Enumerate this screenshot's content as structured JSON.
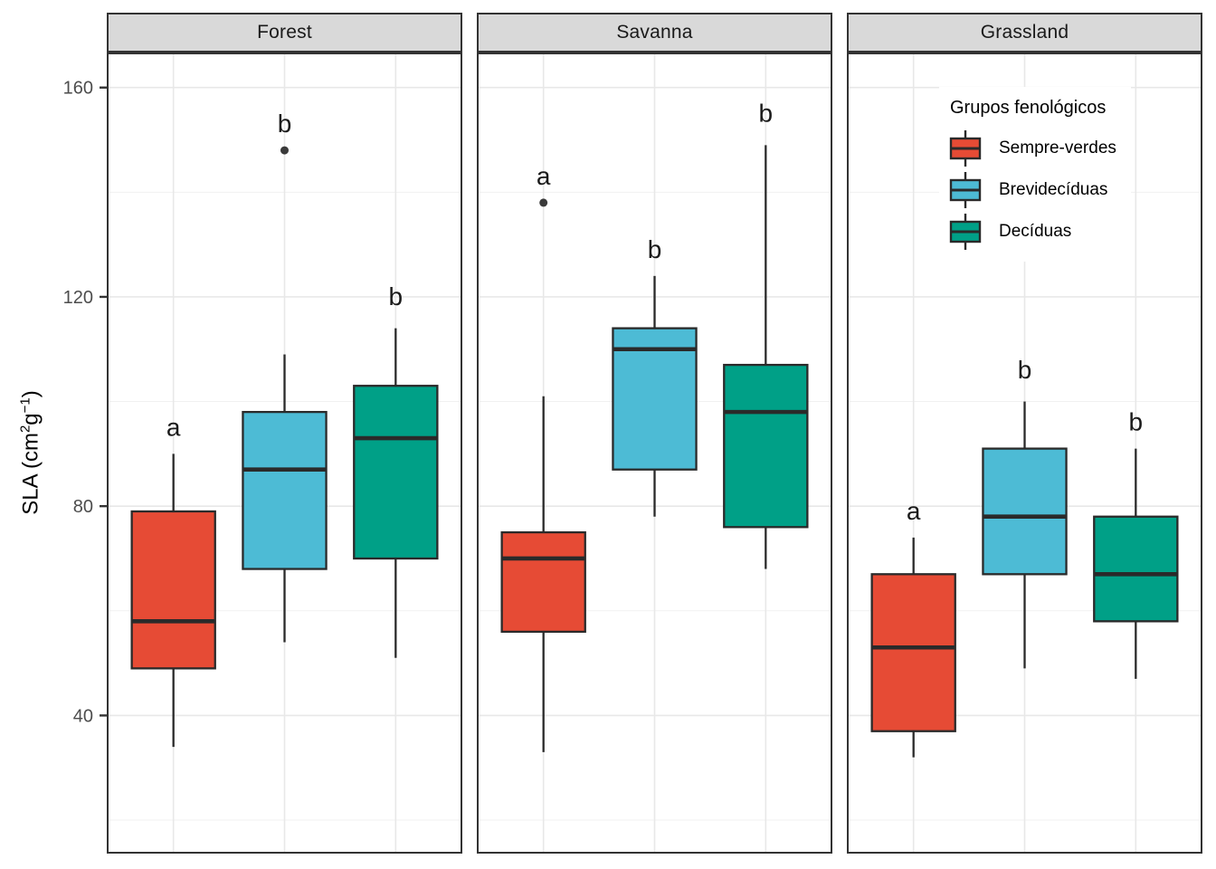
{
  "figure": {
    "background": "#ffffff",
    "y_axis": {
      "title_plain": "SLA (cm²g⁻¹)",
      "title_parts": [
        {
          "t": "SLA (cm"
        },
        {
          "s": "2"
        },
        {
          "t": "g"
        },
        {
          "s": "−1"
        },
        {
          "t": ")"
        }
      ],
      "tick_labels": [
        "160",
        "120",
        "80",
        "40"
      ]
    },
    "legend": {
      "title": "Grupos fenológicos",
      "items": [
        {
          "label": "Sempre-verdes",
          "color": "#E64B35"
        },
        {
          "label": "Brevidecíduas",
          "color": "#4DBBD5"
        },
        {
          "label": "Decíduas",
          "color": "#00A087"
        }
      ]
    },
    "colors": {
      "strip_bg": "#D9D9D9",
      "panel_border": "#333333",
      "box_stroke": "#2a2a2a",
      "grid_major": "#E8E8E8",
      "grid_minor": "#F1F1F1",
      "axis_text": "#4d4d4d",
      "outlier": "#3a3a3a"
    }
  },
  "chart_data": {
    "type": "boxplot",
    "title": "",
    "xlabel": "",
    "ylabel": "SLA (cm²g⁻¹)",
    "ylim": [
      13.6,
      166.7
    ],
    "yticks_major": [
      160,
      120,
      80,
      40
    ],
    "yticks_minor": [
      140,
      100,
      60,
      20
    ],
    "grid": true,
    "legend_title": "Grupos fenológicos",
    "legend_position": "inside top-right of Grassland panel",
    "group_palette": {
      "Sempre-verdes": "#E64B35",
      "Brevidecíduas": "#4DBBD5",
      "Decíduas": "#00A087"
    },
    "facets": [
      {
        "name": "Forest",
        "groups": [
          {
            "group": "Sempre-verdes",
            "color": "#E64B35",
            "whisker_low": 34,
            "q1": 49,
            "median": 58,
            "q3": 79,
            "whisker_high": 90,
            "outliers": [],
            "sig_letter": "a",
            "letter_y": 95
          },
          {
            "group": "Brevidecíduas",
            "color": "#4DBBD5",
            "whisker_low": 54,
            "q1": 68,
            "median": 87,
            "q3": 98,
            "whisker_high": 109,
            "outliers": [
              148
            ],
            "sig_letter": "b",
            "letter_y": 153
          },
          {
            "group": "Decíduas",
            "color": "#00A087",
            "whisker_low": 51,
            "q1": 70,
            "median": 93,
            "q3": 103,
            "whisker_high": 114,
            "outliers": [],
            "sig_letter": "b",
            "letter_y": 120
          }
        ]
      },
      {
        "name": "Savanna",
        "groups": [
          {
            "group": "Sempre-verdes",
            "color": "#E64B35",
            "whisker_low": 33,
            "q1": 56,
            "median": 70,
            "q3": 75,
            "whisker_high": 101,
            "outliers": [
              138
            ],
            "sig_letter": "a",
            "letter_y": 143
          },
          {
            "group": "Brevidecíduas",
            "color": "#4DBBD5",
            "whisker_low": 78,
            "q1": 87,
            "median": 110,
            "q3": 114,
            "whisker_high": 124,
            "outliers": [],
            "sig_letter": "b",
            "letter_y": 129
          },
          {
            "group": "Decíduas",
            "color": "#00A087",
            "whisker_low": 68,
            "q1": 76,
            "median": 98,
            "q3": 107,
            "whisker_high": 149,
            "outliers": [],
            "sig_letter": "b",
            "letter_y": 155
          }
        ]
      },
      {
        "name": "Grassland",
        "groups": [
          {
            "group": "Sempre-verdes",
            "color": "#E64B35",
            "whisker_low": 32,
            "q1": 37,
            "median": 53,
            "q3": 67,
            "whisker_high": 74,
            "outliers": [],
            "sig_letter": "a",
            "letter_y": 79
          },
          {
            "group": "Brevidecíduas",
            "color": "#4DBBD5",
            "whisker_low": 49,
            "q1": 67,
            "median": 78,
            "q3": 91,
            "whisker_high": 100,
            "outliers": [],
            "sig_letter": "b",
            "letter_y": 106
          },
          {
            "group": "Decíduas",
            "color": "#00A087",
            "whisker_low": 47,
            "q1": 58,
            "median": 67,
            "q3": 78,
            "whisker_high": 91,
            "outliers": [],
            "sig_letter": "b",
            "letter_y": 96
          }
        ]
      }
    ]
  }
}
